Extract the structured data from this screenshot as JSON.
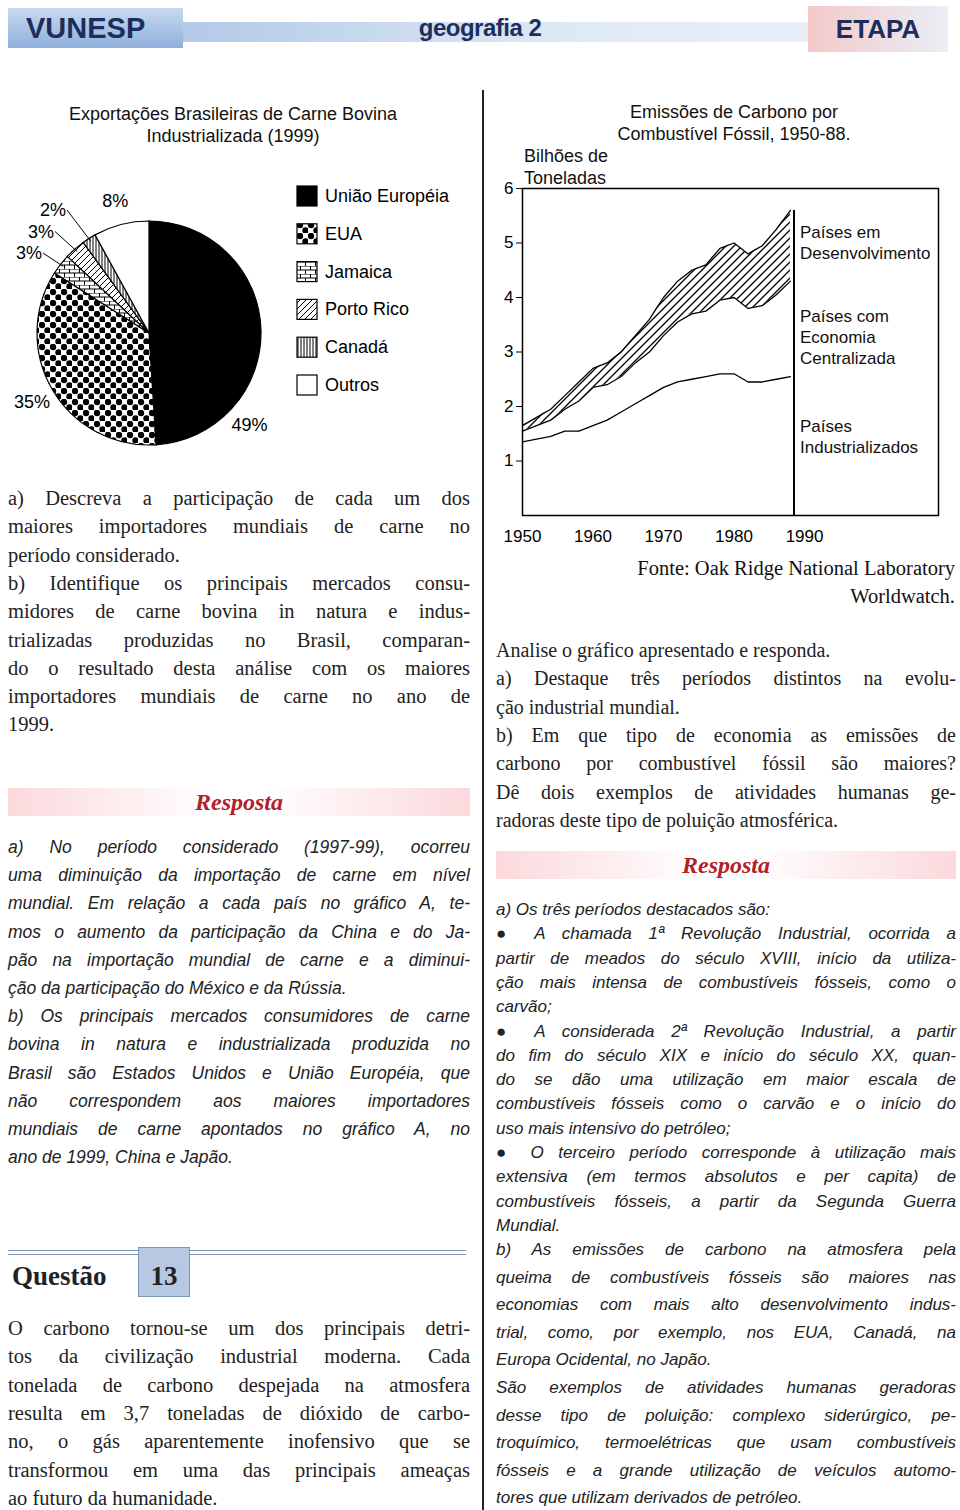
{
  "header": {
    "left": "VUNESP",
    "center": "geografia 2",
    "right": "ETAPA"
  },
  "chart_data": [
    {
      "type": "pie",
      "title": "Exportações Brasileiras de Carne Bovina Industrializada (1999)",
      "categories": [
        "União Européia",
        "EUA",
        "Jamaica",
        "Porto Rico",
        "Canadá",
        "Outros"
      ],
      "values": [
        49,
        35,
        3,
        3,
        2,
        8
      ],
      "value_labels": [
        "49%",
        "35%",
        "3%",
        "3%",
        "2%",
        "8%"
      ],
      "data_labels": true,
      "legend": "right"
    },
    {
      "type": "area",
      "title": "Emissões de Carbono por Combustível Fóssil, 1950-88.",
      "ylabel": "Bilhões de Toneladas",
      "stacked": true,
      "x": [
        1950,
        1952,
        1954,
        1956,
        1958,
        1960,
        1962,
        1964,
        1966,
        1968,
        1970,
        1972,
        1974,
        1976,
        1978,
        1980,
        1982,
        1984,
        1986,
        1988
      ],
      "series": [
        {
          "name": "Países Industrializados",
          "values": [
            1.35,
            1.4,
            1.45,
            1.55,
            1.55,
            1.65,
            1.75,
            1.9,
            2.05,
            2.2,
            2.35,
            2.45,
            2.5,
            2.55,
            2.6,
            2.6,
            2.45,
            2.45,
            2.5,
            2.55
          ]
        },
        {
          "name": "Países com Economia Centralizada",
          "values": [
            0.2,
            0.25,
            0.3,
            0.4,
            0.55,
            0.7,
            0.65,
            0.65,
            0.75,
            0.8,
            0.95,
            1.1,
            1.2,
            1.2,
            1.35,
            1.4,
            1.35,
            1.4,
            1.55,
            1.75
          ]
        },
        {
          "name": "Países em Desenvolvimento",
          "values": [
            0.1,
            0.15,
            0.2,
            0.25,
            0.35,
            0.35,
            0.4,
            0.45,
            0.5,
            0.6,
            0.7,
            0.75,
            0.8,
            0.85,
            0.95,
            1.0,
            1.0,
            1.1,
            1.2,
            1.3
          ]
        }
      ],
      "xlim": [
        1950,
        2009
      ],
      "ylim": [
        0,
        6
      ],
      "xticks": [
        1950,
        1960,
        1970,
        1980,
        1990
      ],
      "yticks": [
        1,
        2,
        3,
        4,
        5,
        6
      ],
      "source": [
        "Fonte: Oak Ridge National Laboratory",
        "Worldwatch."
      ]
    }
  ],
  "left_column": {
    "question": [
      [
        "a) Descreva a participação de cada um dos",
        "maiores importadores mundiais de carne no",
        "período considerado."
      ],
      [
        "b) Identifique os principais mercados consu-",
        "midores de carne bovina in natura e indus-",
        "trializadas produzidas no Brasil, comparan-",
        "do o resultado desta análise com os maiores",
        "importadores mundiais de carne no ano de",
        "1999."
      ]
    ],
    "answer_heading": "Resposta",
    "answer": [
      [
        "a) No período considerado (1997-99), ocorreu",
        "uma diminuição da importação de carne em nível",
        "mundial. Em relação a cada país no gráfico A, te-",
        "mos o aumento da participação da China e do Ja-",
        "pão na importação mundial de carne e a diminui-",
        "ção da participação do México e da Rússia."
      ],
      [
        "b) Os principais mercados consumidores de carne",
        "bovina in natura e industrializada produzida no",
        "Brasil são Estados Unidos e União Européia, que",
        "não correspondem aos maiores importadores",
        "mundiais de carne apontados no gráfico A, no",
        "ano de 1999, China e Japão."
      ]
    ],
    "next_question": {
      "label": "Questão",
      "number": 13,
      "text": [
        [
          "O carbono tornou-se um dos principais detri-",
          "tos da civilização industrial moderna. Cada",
          "tonelada de carbono despejada na atmosfera",
          "resulta em 3,7 toneladas de dióxido de carbo-",
          "no, o gás aparentemente inofensivo que se",
          "transformou em uma das principais ameaças",
          "ao futuro da humanidade."
        ]
      ]
    }
  },
  "right_column": {
    "question": [
      [
        "Analise o gráfico apresentado e responda."
      ],
      [
        "a) Destaque três períodos distintos na evolu-",
        "ção industrial mundial."
      ],
      [
        "b) Em que tipo de economia as emissões de",
        "carbono por combustível fóssil são maiores?",
        "Dê dois exemplos de atividades humanas ge-",
        "radoras deste tipo de poluição atmosférica."
      ]
    ],
    "answer_heading": "Resposta",
    "answer_a": [
      [
        "a) Os três períodos destacados são:"
      ],
      [
        "● A chamada 1ª Revolução Industrial, ocorrida a",
        "partir de meados do século XVIII, início da utiliza-",
        "ção mais intensa de combustíveis fósseis, como o",
        "carvão;"
      ],
      [
        "● A considerada 2ª Revolução Industrial, a partir",
        "do fim do século XIX e início do século XX, quan-",
        "do se dão uma utilização em maior escala de",
        "combustíveis fósseis como o carvão e o início do",
        "uso mais intensivo do petróleo;"
      ],
      [
        "● O terceiro período corresponde à utilização mais",
        "extensiva (em termos absolutos e per capita) de",
        "combustíveis fósseis, a partir da Segunda Guerra",
        "Mundial."
      ]
    ],
    "answer_b": [
      [
        "b) As emissões de carbono na atmosfera pela",
        "queima de combustíveis fósseis são maiores nas",
        "economias com mais alto desenvolvimento indus-",
        "trial, como, por exemplo, nos EUA, Canadá, na",
        "Europa Ocidental, no Japão."
      ],
      [
        "São exemplos de atividades humanas geradoras",
        "desse tipo de poluição: complexo siderúrgico, pe-",
        "troquímico, termoelétricas que usam combustíveis",
        "fósseis e a grande utilização de veículos automo-",
        "tores que utilizam derivados de petróleo."
      ]
    ]
  }
}
